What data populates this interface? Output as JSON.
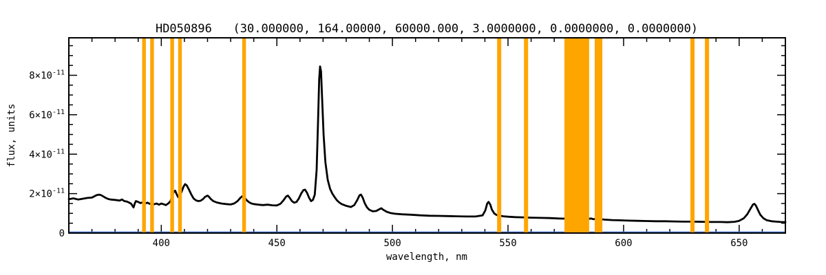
{
  "window": {
    "background": "#ffffff"
  },
  "chart_data": {
    "type": "line",
    "title": "HD050896   (30.000000, 164.00000, 60000.000, 3.0000000, 0.0000000, 0.0000000)",
    "xlabel": "wavelength, nm",
    "ylabel": "flux, units",
    "xlim": [
      360,
      670
    ],
    "ylim": [
      0,
      9.9
    ],
    "flux_scale": "1e-11",
    "grid": false,
    "legend": "none",
    "x_major_ticks": [
      400,
      450,
      500,
      550,
      600,
      650
    ],
    "x_minor_step": 10,
    "y_minor_step": 0.5,
    "y_tick_labels": [
      {
        "v": 0,
        "base": "0",
        "exp": ""
      },
      {
        "v": 2,
        "base": "2×10",
        "exp": "-11"
      },
      {
        "v": 4,
        "base": "4×10",
        "exp": "-11"
      },
      {
        "v": 6,
        "base": "6×10",
        "exp": "-11"
      },
      {
        "v": 8,
        "base": "8×10",
        "exp": "-11"
      }
    ],
    "colors": {
      "frame": "#000000",
      "line": "#000000",
      "baseline": "#3b6fc9",
      "mask": "#ffa500"
    },
    "masked_regions": [
      [
        391.7,
        393.3
      ],
      [
        395.2,
        396.8
      ],
      [
        403.9,
        405.5
      ],
      [
        407.3,
        408.9
      ],
      [
        435.0,
        436.6
      ],
      [
        545.3,
        547.1
      ],
      [
        556.9,
        558.7
      ],
      [
        574.4,
        585.1
      ],
      [
        587.5,
        590.8
      ],
      [
        628.9,
        630.7
      ],
      [
        635.2,
        637.0
      ]
    ],
    "series": [
      {
        "name": "spectrum",
        "color_key": "line",
        "width": 2.8,
        "points": [
          [
            360,
            1.72
          ],
          [
            362,
            1.76
          ],
          [
            364,
            1.7
          ],
          [
            366,
            1.74
          ],
          [
            368,
            1.78
          ],
          [
            370,
            1.8
          ],
          [
            371,
            1.86
          ],
          [
            372,
            1.92
          ],
          [
            373,
            1.95
          ],
          [
            374,
            1.92
          ],
          [
            375,
            1.85
          ],
          [
            376,
            1.78
          ],
          [
            377,
            1.73
          ],
          [
            378,
            1.7
          ],
          [
            380,
            1.68
          ],
          [
            382,
            1.65
          ],
          [
            383,
            1.7
          ],
          [
            384,
            1.62
          ],
          [
            385,
            1.6
          ],
          [
            386,
            1.55
          ],
          [
            387,
            1.48
          ],
          [
            388,
            1.3
          ],
          [
            388.6,
            1.52
          ],
          [
            389,
            1.62
          ],
          [
            390,
            1.58
          ],
          [
            391,
            1.52
          ],
          [
            392,
            1.56
          ],
          [
            393,
            1.5
          ],
          [
            394,
            1.54
          ],
          [
            395,
            1.48
          ],
          [
            396,
            1.52
          ],
          [
            397,
            1.46
          ],
          [
            398,
            1.5
          ],
          [
            399,
            1.44
          ],
          [
            400,
            1.5
          ],
          [
            401,
            1.46
          ],
          [
            402,
            1.42
          ],
          [
            403,
            1.5
          ],
          [
            404,
            1.62
          ],
          [
            404.8,
            1.95
          ],
          [
            405.5,
            2.1
          ],
          [
            406,
            2.15
          ],
          [
            406.6,
            1.98
          ],
          [
            407.3,
            1.82
          ],
          [
            408,
            1.88
          ],
          [
            408.8,
            2.1
          ],
          [
            409.6,
            2.35
          ],
          [
            410.3,
            2.48
          ],
          [
            411,
            2.42
          ],
          [
            412,
            2.2
          ],
          [
            413,
            1.95
          ],
          [
            414,
            1.75
          ],
          [
            415,
            1.66
          ],
          [
            416,
            1.62
          ],
          [
            417,
            1.64
          ],
          [
            418,
            1.72
          ],
          [
            419,
            1.84
          ],
          [
            420,
            1.9
          ],
          [
            420.6,
            1.84
          ],
          [
            421.5,
            1.72
          ],
          [
            422.5,
            1.62
          ],
          [
            424,
            1.55
          ],
          [
            426,
            1.5
          ],
          [
            428,
            1.47
          ],
          [
            430,
            1.45
          ],
          [
            431.5,
            1.5
          ],
          [
            433,
            1.62
          ],
          [
            434.3,
            1.8
          ],
          [
            435.2,
            1.88
          ],
          [
            436,
            1.8
          ],
          [
            437,
            1.66
          ],
          [
            438,
            1.56
          ],
          [
            439,
            1.5
          ],
          [
            440,
            1.47
          ],
          [
            442,
            1.44
          ],
          [
            444,
            1.42
          ],
          [
            446,
            1.44
          ],
          [
            448,
            1.41
          ],
          [
            450,
            1.4
          ],
          [
            451.5,
            1.48
          ],
          [
            452.8,
            1.65
          ],
          [
            454,
            1.85
          ],
          [
            454.8,
            1.9
          ],
          [
            455.6,
            1.78
          ],
          [
            456.5,
            1.62
          ],
          [
            457.5,
            1.54
          ],
          [
            458.5,
            1.58
          ],
          [
            459.5,
            1.75
          ],
          [
            460.5,
            2.0
          ],
          [
            461.5,
            2.18
          ],
          [
            462.2,
            2.2
          ],
          [
            463,
            2.05
          ],
          [
            464,
            1.78
          ],
          [
            464.8,
            1.62
          ],
          [
            465.6,
            1.68
          ],
          [
            466.4,
            1.95
          ],
          [
            467.2,
            3.2
          ],
          [
            467.8,
            5.6
          ],
          [
            468.3,
            7.8
          ],
          [
            468.7,
            8.45
          ],
          [
            469.1,
            8.2
          ],
          [
            469.6,
            6.8
          ],
          [
            470.2,
            5.0
          ],
          [
            471,
            3.6
          ],
          [
            472,
            2.7
          ],
          [
            473,
            2.25
          ],
          [
            474,
            2.0
          ],
          [
            475,
            1.82
          ],
          [
            476,
            1.66
          ],
          [
            477,
            1.55
          ],
          [
            478,
            1.47
          ],
          [
            480,
            1.38
          ],
          [
            482,
            1.32
          ],
          [
            483.5,
            1.42
          ],
          [
            484.8,
            1.68
          ],
          [
            485.8,
            1.92
          ],
          [
            486.4,
            1.95
          ],
          [
            487.2,
            1.78
          ],
          [
            488,
            1.52
          ],
          [
            489,
            1.3
          ],
          [
            490,
            1.18
          ],
          [
            491.5,
            1.1
          ],
          [
            493,
            1.12
          ],
          [
            494.5,
            1.22
          ],
          [
            495.2,
            1.26
          ],
          [
            496,
            1.18
          ],
          [
            497.5,
            1.08
          ],
          [
            499,
            1.02
          ],
          [
            501,
            0.98
          ],
          [
            504,
            0.95
          ],
          [
            508,
            0.93
          ],
          [
            512,
            0.9
          ],
          [
            516,
            0.88
          ],
          [
            520,
            0.87
          ],
          [
            524,
            0.86
          ],
          [
            528,
            0.85
          ],
          [
            532,
            0.84
          ],
          [
            536,
            0.84
          ],
          [
            539,
            0.9
          ],
          [
            540.2,
            1.15
          ],
          [
            541,
            1.5
          ],
          [
            541.6,
            1.58
          ],
          [
            542.3,
            1.45
          ],
          [
            543,
            1.2
          ],
          [
            544,
            1.0
          ],
          [
            545,
            0.92
          ],
          [
            546.5,
            0.88
          ],
          [
            548,
            0.85
          ],
          [
            550,
            0.83
          ],
          [
            553,
            0.81
          ],
          [
            556,
            0.8
          ],
          [
            560,
            0.78
          ],
          [
            564,
            0.77
          ],
          [
            568,
            0.76
          ],
          [
            572,
            0.74
          ],
          [
            576,
            0.73
          ],
          [
            580,
            0.72
          ],
          [
            584,
            0.71
          ],
          [
            586,
            0.74
          ],
          [
            587,
            0.7
          ],
          [
            588,
            0.72
          ],
          [
            590,
            0.7
          ],
          [
            592,
            0.68
          ],
          [
            595,
            0.66
          ],
          [
            598,
            0.65
          ],
          [
            602,
            0.63
          ],
          [
            606,
            0.62
          ],
          [
            610,
            0.61
          ],
          [
            614,
            0.6
          ],
          [
            618,
            0.6
          ],
          [
            622,
            0.59
          ],
          [
            626,
            0.58
          ],
          [
            630,
            0.58
          ],
          [
            634,
            0.57
          ],
          [
            638,
            0.56
          ],
          [
            642,
            0.56
          ],
          [
            645,
            0.55
          ],
          [
            648,
            0.57
          ],
          [
            650,
            0.62
          ],
          [
            652,
            0.75
          ],
          [
            653.5,
            0.95
          ],
          [
            655,
            1.25
          ],
          [
            656,
            1.45
          ],
          [
            656.6,
            1.48
          ],
          [
            657.3,
            1.38
          ],
          [
            658.2,
            1.15
          ],
          [
            659.2,
            0.92
          ],
          [
            660.5,
            0.75
          ],
          [
            662,
            0.65
          ],
          [
            664,
            0.6
          ],
          [
            666,
            0.58
          ],
          [
            668,
            0.56
          ],
          [
            670,
            0.55
          ]
        ]
      },
      {
        "name": "baseline",
        "color_key": "baseline",
        "width": 1.6,
        "points": [
          [
            360,
            0.05
          ],
          [
            670,
            0.05
          ]
        ]
      }
    ]
  }
}
